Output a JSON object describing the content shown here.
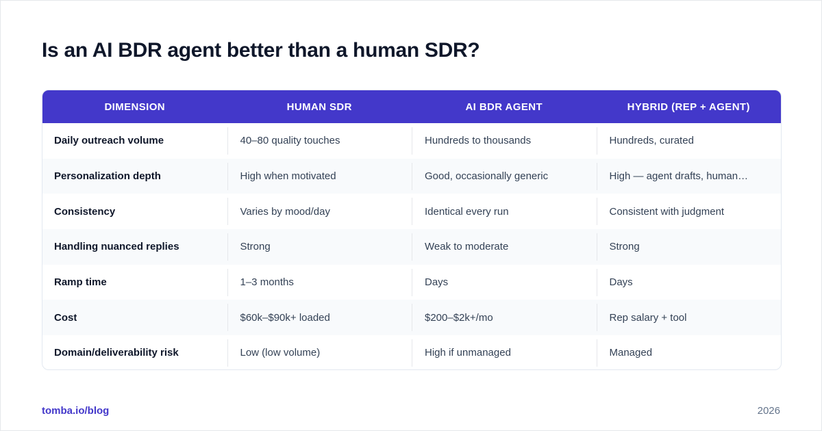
{
  "title": "Is an AI BDR agent better than a human SDR?",
  "colors": {
    "accent": "#4338ca",
    "title": "#0f172a",
    "body_text": "#334155",
    "row_alt": "#f8fafc",
    "muted": "#64748b"
  },
  "table": {
    "headers": [
      "DIMENSION",
      "HUMAN SDR",
      "AI BDR AGENT",
      "HYBRID (REP + AGENT)"
    ],
    "rows": [
      [
        "Daily outreach volume",
        "40–80 quality touches",
        "Hundreds to thousands",
        "Hundreds, curated"
      ],
      [
        "Personalization depth",
        "High when motivated",
        "Good, occasionally generic",
        "High — agent drafts, human…"
      ],
      [
        "Consistency",
        "Varies by mood/day",
        "Identical every run",
        "Consistent with judgment"
      ],
      [
        "Handling nuanced replies",
        "Strong",
        "Weak to moderate",
        "Strong"
      ],
      [
        "Ramp time",
        "1–3 months",
        "Days",
        "Days"
      ],
      [
        "Cost",
        "$60k–$90k+ loaded",
        "$200–$2k+/mo",
        "Rep salary + tool"
      ],
      [
        "Domain/deliverability risk",
        "Low (low volume)",
        "High if unmanaged",
        "Managed"
      ]
    ]
  },
  "footer": {
    "link": "tomba.io/blog",
    "year": "2026"
  }
}
